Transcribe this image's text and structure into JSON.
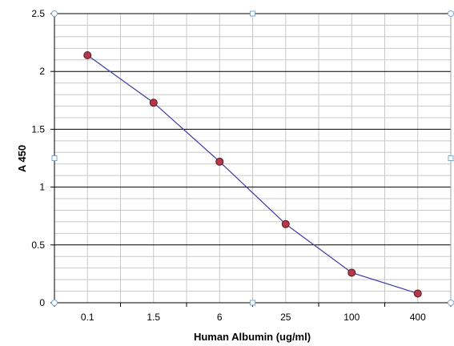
{
  "chart_data": {
    "type": "line",
    "categories": [
      "0.1",
      "1.5",
      "6",
      "25",
      "100",
      "400"
    ],
    "series": [
      {
        "values": [
          2.14,
          1.73,
          1.22,
          0.68,
          0.26,
          0.08
        ]
      }
    ],
    "xlabel": "Human Albumin (ug/ml)",
    "ylabel": "A 450",
    "ylim": [
      0,
      2.5
    ],
    "yticks": [
      "0",
      "0.5",
      "1",
      "1.5",
      "2",
      "2.5"
    ],
    "grid": true,
    "colors": {
      "line": "#3a3aa0",
      "marker_fill": "#b5384a",
      "marker_stroke": "#5a1a22",
      "major_grid": "#000000",
      "minor_grid": "#c8c8c8"
    }
  }
}
